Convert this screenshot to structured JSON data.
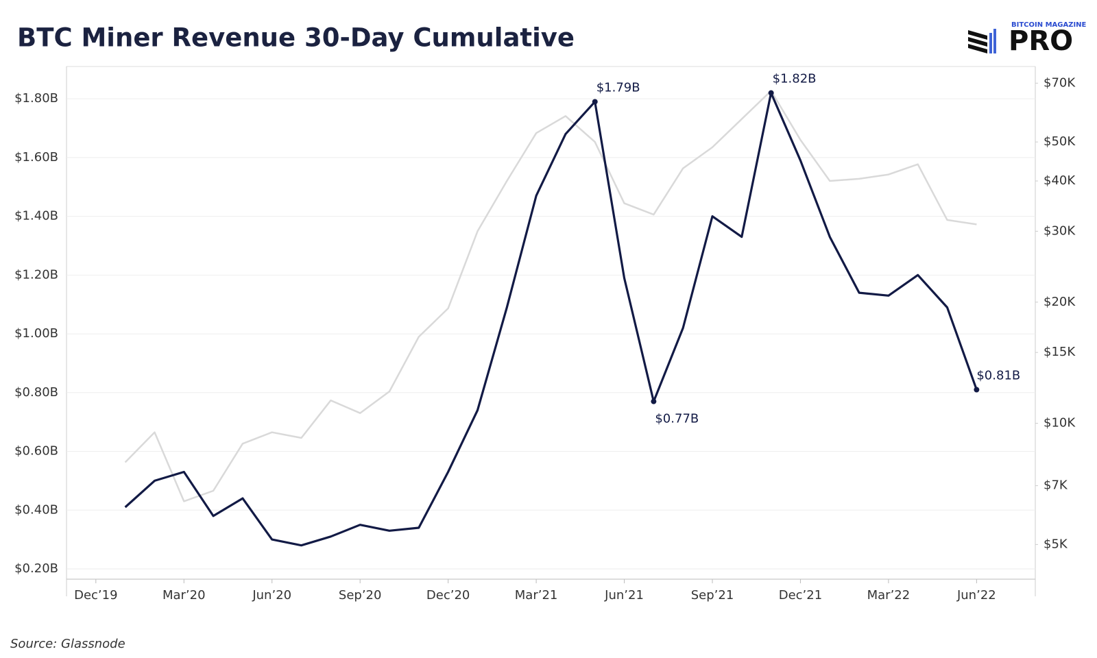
{
  "chart_data": {
    "type": "line",
    "title": "BTC Miner Revenue 30-Day Cumulative",
    "brand": [
      "BITCOIN MAGAZINE",
      "PRO"
    ],
    "source": "Source: Glassnode",
    "x": [
      "2020-01",
      "2020-02",
      "2020-03",
      "2020-04",
      "2020-05",
      "2020-06",
      "2020-07",
      "2020-08",
      "2020-09",
      "2020-10",
      "2020-11",
      "2020-12",
      "2021-01",
      "2021-02",
      "2021-03",
      "2021-04",
      "2021-05",
      "2021-06",
      "2021-07",
      "2021-08",
      "2021-09",
      "2021-10",
      "2021-11",
      "2021-12",
      "2022-01",
      "2022-02",
      "2022-03",
      "2022-04",
      "2022-05",
      "2022-06"
    ],
    "xlim": [
      "2019-11",
      "2022-08"
    ],
    "xticks": [
      {
        "value": "2019-12",
        "label": "Dec’19"
      },
      {
        "value": "2020-03",
        "label": "Mar’20"
      },
      {
        "value": "2020-06",
        "label": "Jun’20"
      },
      {
        "value": "2020-09",
        "label": "Sep’20"
      },
      {
        "value": "2020-12",
        "label": "Dec’20"
      },
      {
        "value": "2021-03",
        "label": "Mar’21"
      },
      {
        "value": "2021-06",
        "label": "Jun’21"
      },
      {
        "value": "2021-09",
        "label": "Sep’21"
      },
      {
        "value": "2021-12",
        "label": "Dec’21"
      },
      {
        "value": "2022-03",
        "label": "Mar’22"
      },
      {
        "value": "2022-06",
        "label": "Jun’22"
      }
    ],
    "ylim": [
      0.165,
      1.91
    ],
    "yticks": [
      {
        "value": 0.2,
        "label": "$0.20B"
      },
      {
        "value": 0.4,
        "label": "$0.40B"
      },
      {
        "value": 0.6,
        "label": "$0.60B"
      },
      {
        "value": 0.8,
        "label": "$0.80B"
      },
      {
        "value": 1.0,
        "label": "$1.00B"
      },
      {
        "value": 1.2,
        "label": "$1.20B"
      },
      {
        "value": 1.4,
        "label": "$1.40B"
      },
      {
        "value": 1.6,
        "label": "$1.60B"
      },
      {
        "value": 1.8,
        "label": "$1.80B"
      }
    ],
    "y2lim": [
      4100,
      77000
    ],
    "y2scale": "log",
    "y2ticks": [
      {
        "value": 5000,
        "label": "$5K"
      },
      {
        "value": 7000,
        "label": "$7K"
      },
      {
        "value": 10000,
        "label": "$10K"
      },
      {
        "value": 15000,
        "label": "$15K"
      },
      {
        "value": 20000,
        "label": "$20K"
      },
      {
        "value": 30000,
        "label": "$30K"
      },
      {
        "value": 40000,
        "label": "$40K"
      },
      {
        "value": 50000,
        "label": "$50K"
      },
      {
        "value": 70000,
        "label": "$70K"
      }
    ],
    "grid": true,
    "series": [
      {
        "color": "#d9d9d9",
        "axis": "y2",
        "values": [
          8000,
          9500,
          6400,
          6800,
          8900,
          9500,
          9200,
          11400,
          10600,
          12000,
          16400,
          19300,
          30000,
          40000,
          52600,
          58000,
          50000,
          35200,
          33000,
          43000,
          48500,
          57000,
          67000,
          50600,
          40000,
          40500,
          41500,
          44000,
          32000,
          31200
        ]
      },
      {
        "color": "#121a45",
        "axis": "y",
        "values": [
          0.41,
          0.5,
          0.53,
          0.38,
          0.44,
          0.3,
          0.28,
          0.31,
          0.35,
          0.33,
          0.34,
          0.53,
          0.74,
          1.09,
          1.47,
          1.68,
          1.79,
          1.19,
          0.77,
          1.02,
          1.4,
          1.33,
          1.82,
          1.59,
          1.33,
          1.14,
          1.13,
          1.2,
          1.09,
          0.81
        ],
        "value_labels": [
          null,
          null,
          null,
          null,
          null,
          null,
          null,
          null,
          null,
          null,
          null,
          null,
          null,
          null,
          null,
          null,
          "$1.79B",
          null,
          "$0.77B",
          null,
          null,
          null,
          "$1.82B",
          null,
          null,
          null,
          null,
          null,
          null,
          "$0.81B"
        ]
      }
    ]
  }
}
